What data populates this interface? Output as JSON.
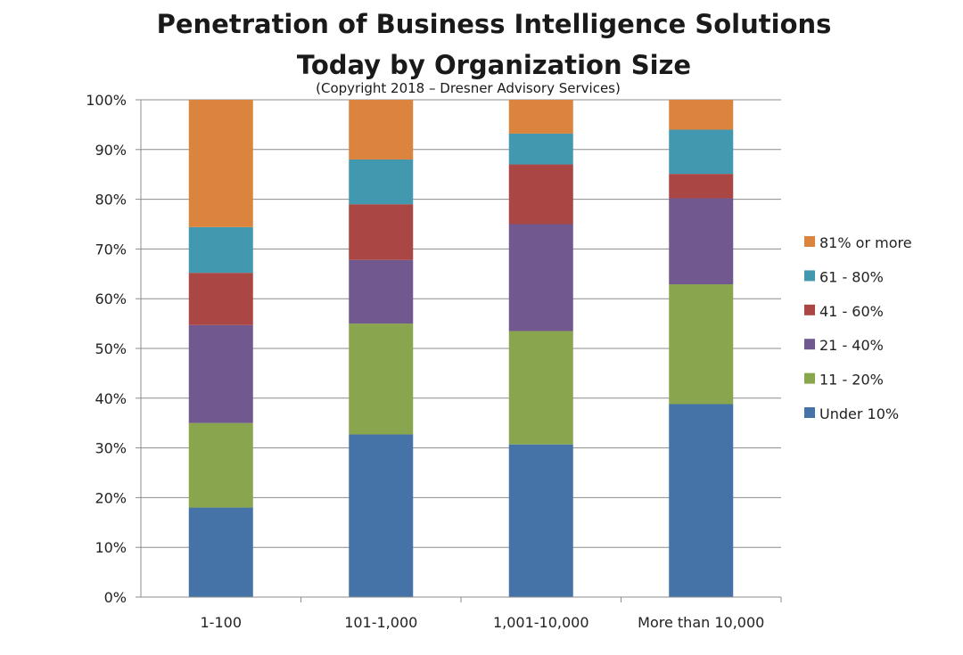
{
  "title_line1": "Penetration of Business Intelligence Solutions",
  "title_line2": "Today by Organization Size",
  "subtitle": "(Copyright 2018 – Dresner Advisory Services)",
  "chart_data": {
    "type": "bar",
    "stacked": true,
    "title": "Penetration of Business Intelligence Solutions Today by Organization Size",
    "subtitle": "(Copyright 2018 – Dresner Advisory Services)",
    "categories": [
      "1-100",
      "101-1,000",
      "1,001-10,000",
      "More than 10,000"
    ],
    "ylim": [
      0,
      100
    ],
    "yticks": [
      "0%",
      "10%",
      "20%",
      "30%",
      "40%",
      "50%",
      "60%",
      "70%",
      "80%",
      "90%",
      "100%"
    ],
    "grid": true,
    "legend_position": "right",
    "series": [
      {
        "name": "Under 10%",
        "color": "#4572a7",
        "values": [
          18,
          32.7,
          30.7,
          38.8
        ]
      },
      {
        "name": "11 - 20%",
        "color": "#89a54e",
        "values": [
          17,
          22.3,
          22.8,
          24.1
        ]
      },
      {
        "name": "21 - 40%",
        "color": "#71588f",
        "values": [
          19.7,
          12.8,
          21.5,
          17.3
        ]
      },
      {
        "name": "41 - 60%",
        "color": "#aa4643",
        "values": [
          10.5,
          11.2,
          12,
          4.9
        ]
      },
      {
        "name": "61 - 80%",
        "color": "#4198af",
        "values": [
          9.2,
          9,
          6.2,
          8.9
        ]
      },
      {
        "name": "81% or more",
        "color": "#db843d",
        "values": [
          25.6,
          12,
          6.8,
          6
        ]
      }
    ]
  }
}
